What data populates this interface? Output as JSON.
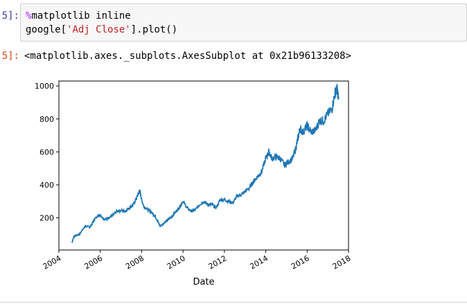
{
  "cell": {
    "in_prompt": "5]:",
    "code_line_1_magic": "%",
    "code_line_1_rest": "matplotlib inline",
    "code_line_2_a": "google[",
    "code_line_2_str": "'Adj Close'",
    "code_line_2_b": "].plot()"
  },
  "output": {
    "out_prompt": "5]:",
    "repr_text": "<matplotlib.axes._subplots.AxesSubplot at 0x21b96133208>"
  },
  "colors": {
    "line": "#1f77b4",
    "prompt_in": "#303F9F",
    "prompt_out": "#D84315"
  },
  "chart_data": {
    "type": "line",
    "title": "",
    "xlabel": "Date",
    "ylabel": "",
    "xlim": [
      2004.0,
      2018.0
    ],
    "ylim": [
      5,
      1030
    ],
    "grid": false,
    "legend": false,
    "x_ticks": [
      2004,
      2006,
      2008,
      2010,
      2012,
      2014,
      2016,
      2018
    ],
    "y_ticks": [
      200,
      400,
      600,
      800,
      1000
    ],
    "series": [
      {
        "x": [
          2004.63,
          2004.72,
          2004.85,
          2005.0,
          2005.2,
          2005.35,
          2005.5,
          2005.65,
          2005.8,
          2006.0,
          2006.1,
          2006.2,
          2006.4,
          2006.6,
          2006.8,
          2007.0,
          2007.2,
          2007.4,
          2007.6,
          2007.75,
          2007.85,
          2007.92,
          2008.0,
          2008.1,
          2008.3,
          2008.5,
          2008.65,
          2008.8,
          2008.88,
          2009.0,
          2009.2,
          2009.4,
          2009.6,
          2009.8,
          2010.0,
          2010.2,
          2010.4,
          2010.6,
          2010.8,
          2011.0,
          2011.2,
          2011.4,
          2011.6,
          2011.8,
          2012.0,
          2012.2,
          2012.4,
          2012.6,
          2012.8,
          2013.0,
          2013.2,
          2013.4,
          2013.6,
          2013.8,
          2014.0,
          2014.15,
          2014.3,
          2014.5,
          2014.7,
          2014.9,
          2015.1,
          2015.3,
          2015.45,
          2015.55,
          2015.65,
          2015.8,
          2016.0,
          2016.2,
          2016.4,
          2016.6,
          2016.8,
          2017.0,
          2017.2,
          2017.35,
          2017.45,
          2017.52
        ],
        "y": [
          50,
          85,
          95,
          100,
          140,
          150,
          145,
          175,
          205,
          220,
          200,
          190,
          195,
          215,
          240,
          245,
          240,
          260,
          280,
          320,
          350,
          360,
          310,
          270,
          250,
          230,
          210,
          175,
          150,
          160,
          180,
          200,
          230,
          260,
          300,
          260,
          240,
          250,
          280,
          300,
          280,
          280,
          260,
          310,
          310,
          300,
          290,
          330,
          340,
          360,
          380,
          420,
          450,
          480,
          560,
          600,
          560,
          570,
          560,
          520,
          540,
          560,
          620,
          680,
          740,
          720,
          760,
          720,
          730,
          790,
          790,
          830,
          860,
          960,
          980,
          920
        ]
      }
    ]
  }
}
